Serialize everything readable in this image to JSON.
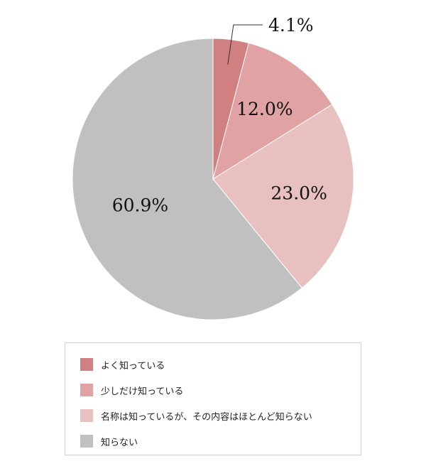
{
  "chart_data": {
    "type": "pie",
    "slices": [
      {
        "label": "よく知っている",
        "value": 4.1,
        "display": "4.1%",
        "color": "#d08080"
      },
      {
        "label": "少しだけ知っている",
        "value": 12.0,
        "display": "12.0%",
        "color": "#e0a2a2"
      },
      {
        "label": "名称は知っているが、その内容はほとんど知らない",
        "value": 23.0,
        "display": "23.0%",
        "color": "#e8c0c0"
      },
      {
        "label": "知らない",
        "value": 60.9,
        "display": "60.9%",
        "color": "#c0c0c0"
      }
    ],
    "start": "top",
    "direction": "clockwise",
    "legend_position": "bottom"
  }
}
